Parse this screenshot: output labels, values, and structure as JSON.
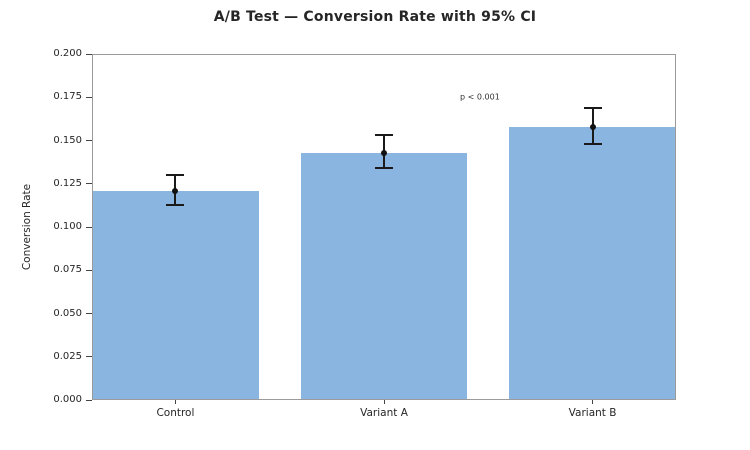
{
  "chart_data": {
    "type": "bar",
    "title": "A/B Test — Conversion Rate with 95% CI",
    "xlabel": "",
    "ylabel": "Conversion Rate",
    "categories": [
      "Control",
      "Variant A",
      "Variant B"
    ],
    "values": [
      0.121,
      0.143,
      0.158
    ],
    "ci_low": [
      0.113,
      0.134,
      0.148
    ],
    "ci_high": [
      0.13,
      0.153,
      0.169
    ],
    "ylim": [
      0.0,
      0.2
    ],
    "ytick_labels": [
      "0.000",
      "0.025",
      "0.050",
      "0.075",
      "0.100",
      "0.125",
      "0.150",
      "0.175",
      "0.200"
    ],
    "annotation": {
      "text": "p < 0.001",
      "x": 1.46,
      "y": 0.175
    },
    "grid": false,
    "box": true,
    "legend": null,
    "bar_color": "#8AB5E0",
    "error_color": "#1a1a1a",
    "spine_color": "#9b9b9b",
    "text_color": "#262626"
  }
}
